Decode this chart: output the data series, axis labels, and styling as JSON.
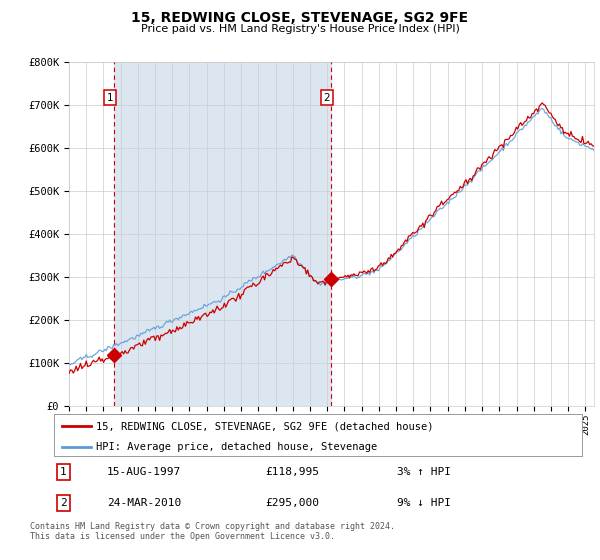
{
  "title": "15, REDWING CLOSE, STEVENAGE, SG2 9FE",
  "subtitle": "Price paid vs. HM Land Registry's House Price Index (HPI)",
  "legend_label_red": "15, REDWING CLOSE, STEVENAGE, SG2 9FE (detached house)",
  "legend_label_blue": "HPI: Average price, detached house, Stevenage",
  "annotation1_label": "1",
  "annotation1_date": "15-AUG-1997",
  "annotation1_price": "£118,995",
  "annotation1_hpi": "3% ↑ HPI",
  "annotation1_year": 1997.62,
  "annotation1_value": 118995,
  "annotation2_label": "2",
  "annotation2_date": "24-MAR-2010",
  "annotation2_price": "£295,000",
  "annotation2_hpi": "9% ↓ HPI",
  "annotation2_year": 2010.22,
  "annotation2_value": 295000,
  "yticks": [
    0,
    100000,
    200000,
    300000,
    400000,
    500000,
    600000,
    700000,
    800000
  ],
  "ytick_labels": [
    "£0",
    "£100K",
    "£200K",
    "£300K",
    "£400K",
    "£500K",
    "£600K",
    "£700K",
    "£800K"
  ],
  "xmin": 1995.0,
  "xmax": 2025.5,
  "ymin": 0,
  "ymax": 800000,
  "shaded_region_start": 1997.62,
  "shaded_region_end": 2010.22,
  "red_color": "#cc0000",
  "blue_color": "#5b9bd5",
  "shaded_color": "#dce6f1",
  "grid_color": "#cccccc",
  "bg_color": "#ffffff",
  "footnote": "Contains HM Land Registry data © Crown copyright and database right 2024.\nThis data is licensed under the Open Government Licence v3.0."
}
